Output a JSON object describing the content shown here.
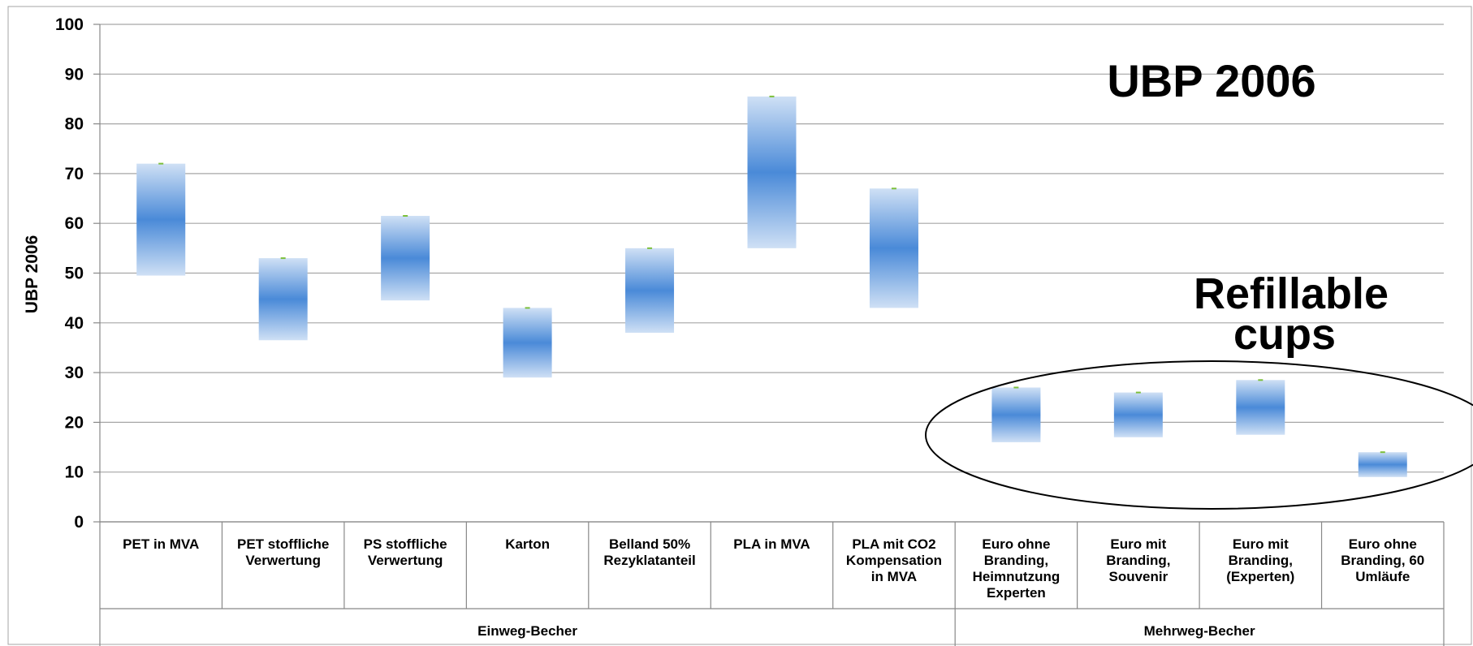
{
  "chart_data": {
    "type": "bar",
    "title": "UBP 2006",
    "ylabel": "UBP 2006",
    "xlabel": "",
    "ylim": [
      0,
      100
    ],
    "yticks": [
      0,
      10,
      20,
      30,
      40,
      50,
      60,
      70,
      80,
      90,
      100
    ],
    "grid": true,
    "categories": [
      [
        "PET in MVA"
      ],
      [
        "PET stoffliche",
        "Verwertung"
      ],
      [
        "PS stoffliche",
        "Verwertung"
      ],
      [
        "Karton"
      ],
      [
        "Belland 50%",
        "Rezyklatanteil"
      ],
      [
        "PLA in MVA"
      ],
      [
        "PLA mit CO2",
        "Kompensation",
        "in MVA"
      ],
      [
        "Euro ohne",
        "Branding,",
        "Heimnutzung",
        "Experten"
      ],
      [
        "Euro mit",
        "Branding,",
        "Souvenir"
      ],
      [
        "Euro mit",
        "Branding,",
        "(Experten)"
      ],
      [
        "Euro ohne",
        "Branding, 60",
        "Umläufe"
      ]
    ],
    "groups": [
      {
        "label": "Einweg-Becher",
        "count": 7
      },
      {
        "label": "Mehrweg-Becher",
        "count": 4
      }
    ],
    "series": [
      {
        "low": [
          49.5,
          36.5,
          44.5,
          29,
          38,
          55,
          43,
          16,
          17,
          17.5,
          9
        ]
      },
      {
        "high": [
          72,
          53,
          61.5,
          43,
          55,
          85.5,
          67,
          27,
          26,
          28.5,
          14
        ]
      }
    ],
    "annotations": [
      {
        "text": [
          "Refillable",
          "cups"
        ],
        "encircles": "Mehrweg-Becher"
      }
    ],
    "colors": {
      "bar_center": "#4a8ad8",
      "bar_edge": "#c8dbf3",
      "grid": "#a6a6a6",
      "marker": "#7cbf3a"
    }
  }
}
